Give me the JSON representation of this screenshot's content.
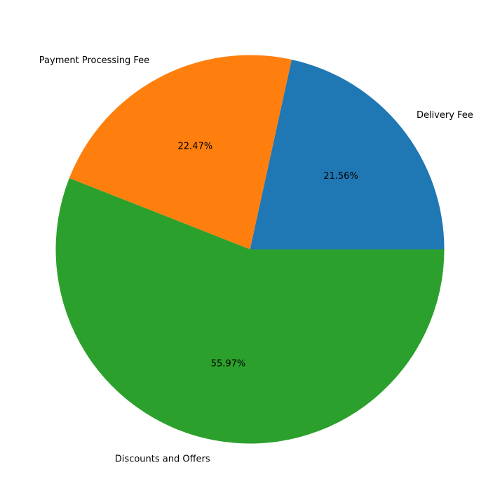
{
  "chart_data": {
    "type": "pie",
    "title": "",
    "categories": [
      "Delivery Fee",
      "Payment Processing Fee",
      "Discounts and Offers"
    ],
    "values": [
      21.56,
      22.47,
      55.97
    ],
    "percent_labels": [
      "21.56%",
      "22.47%",
      "55.97%"
    ],
    "colors": [
      "#1f77b4",
      "#ff7f0e",
      "#2ca02c"
    ],
    "start_angle_deg": 0,
    "direction": "counterclockwise",
    "legend": "none"
  }
}
